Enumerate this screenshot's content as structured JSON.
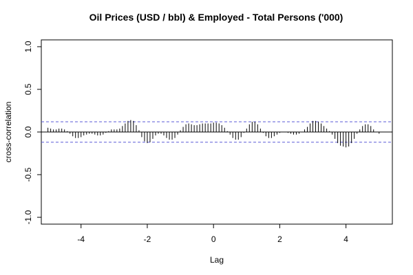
{
  "chart_data": {
    "type": "bar",
    "title": "Oil Prices (USD / bbl) & Employed - Total Persons ('000)",
    "xlabel": "Lag",
    "ylabel": "cross-correlation",
    "xlim": [
      -5.2,
      5.4
    ],
    "ylim": [
      -1.08,
      1.08
    ],
    "x_ticks": [
      -4,
      -2,
      0,
      2,
      4
    ],
    "y_ticks": [
      -1.0,
      -0.5,
      0.0,
      0.5,
      1.0
    ],
    "x_tick_labels": [
      "-4",
      "-2",
      "0",
      "2",
      "4"
    ],
    "y_tick_labels": [
      "-1.0",
      "-0.5",
      "0.0",
      "0.5",
      "1.0"
    ],
    "confidence_bound": 0.12,
    "lags": [
      -5.0,
      -4.917,
      -4.833,
      -4.75,
      -4.667,
      -4.583,
      -4.5,
      -4.417,
      -4.333,
      -4.25,
      -4.167,
      -4.083,
      -4.0,
      -3.917,
      -3.833,
      -3.75,
      -3.667,
      -3.583,
      -3.5,
      -3.417,
      -3.333,
      -3.25,
      -3.167,
      -3.083,
      -3.0,
      -2.917,
      -2.833,
      -2.75,
      -2.667,
      -2.583,
      -2.5,
      -2.417,
      -2.333,
      -2.25,
      -2.167,
      -2.083,
      -2.0,
      -1.917,
      -1.833,
      -1.75,
      -1.667,
      -1.583,
      -1.5,
      -1.417,
      -1.333,
      -1.25,
      -1.167,
      -1.083,
      -1.0,
      -0.917,
      -0.833,
      -0.75,
      -0.667,
      -0.583,
      -0.5,
      -0.417,
      -0.333,
      -0.25,
      -0.167,
      -0.083,
      0.0,
      0.083,
      0.167,
      0.25,
      0.333,
      0.417,
      0.5,
      0.583,
      0.667,
      0.75,
      0.833,
      0.917,
      1.0,
      1.083,
      1.167,
      1.25,
      1.333,
      1.417,
      1.5,
      1.583,
      1.667,
      1.75,
      1.833,
      1.917,
      2.0,
      2.083,
      2.167,
      2.25,
      2.333,
      2.417,
      2.5,
      2.583,
      2.667,
      2.75,
      2.833,
      2.917,
      3.0,
      3.083,
      3.167,
      3.25,
      3.333,
      3.417,
      3.5,
      3.583,
      3.667,
      3.75,
      3.833,
      3.917,
      4.0,
      4.083,
      4.167,
      4.25,
      4.333,
      4.417,
      4.5,
      4.583,
      4.667,
      4.75,
      4.833,
      4.917,
      5.0
    ],
    "values": [
      0.05,
      0.04,
      0.03,
      0.03,
      0.04,
      0.04,
      0.03,
      0.01,
      -0.02,
      -0.05,
      -0.07,
      -0.07,
      -0.06,
      -0.04,
      -0.03,
      -0.02,
      -0.02,
      -0.03,
      -0.04,
      -0.04,
      -0.03,
      -0.01,
      0.01,
      0.03,
      0.03,
      0.03,
      0.04,
      0.07,
      0.1,
      0.13,
      0.14,
      0.13,
      0.08,
      0.02,
      -0.06,
      -0.11,
      -0.13,
      -0.12,
      -0.08,
      -0.04,
      -0.02,
      -0.02,
      -0.04,
      -0.07,
      -0.09,
      -0.09,
      -0.07,
      -0.03,
      0.02,
      0.06,
      0.09,
      0.1,
      0.09,
      0.08,
      0.08,
      0.09,
      0.1,
      0.1,
      0.1,
      0.1,
      0.11,
      0.11,
      0.1,
      0.08,
      0.05,
      0.01,
      -0.03,
      -0.07,
      -0.09,
      -0.09,
      -0.06,
      -0.01,
      0.04,
      0.09,
      0.12,
      0.12,
      0.09,
      0.04,
      -0.01,
      -0.05,
      -0.07,
      -0.07,
      -0.05,
      -0.03,
      -0.01,
      0.0,
      0.0,
      -0.01,
      -0.02,
      -0.03,
      -0.03,
      -0.02,
      0.0,
      0.03,
      0.06,
      0.1,
      0.13,
      0.13,
      0.12,
      0.1,
      0.07,
      0.04,
      0.01,
      -0.03,
      -0.08,
      -0.13,
      -0.16,
      -0.17,
      -0.18,
      -0.17,
      -0.13,
      -0.08,
      -0.02,
      0.03,
      0.07,
      0.09,
      0.09,
      0.07,
      0.03,
      0.0,
      -0.02
    ]
  }
}
